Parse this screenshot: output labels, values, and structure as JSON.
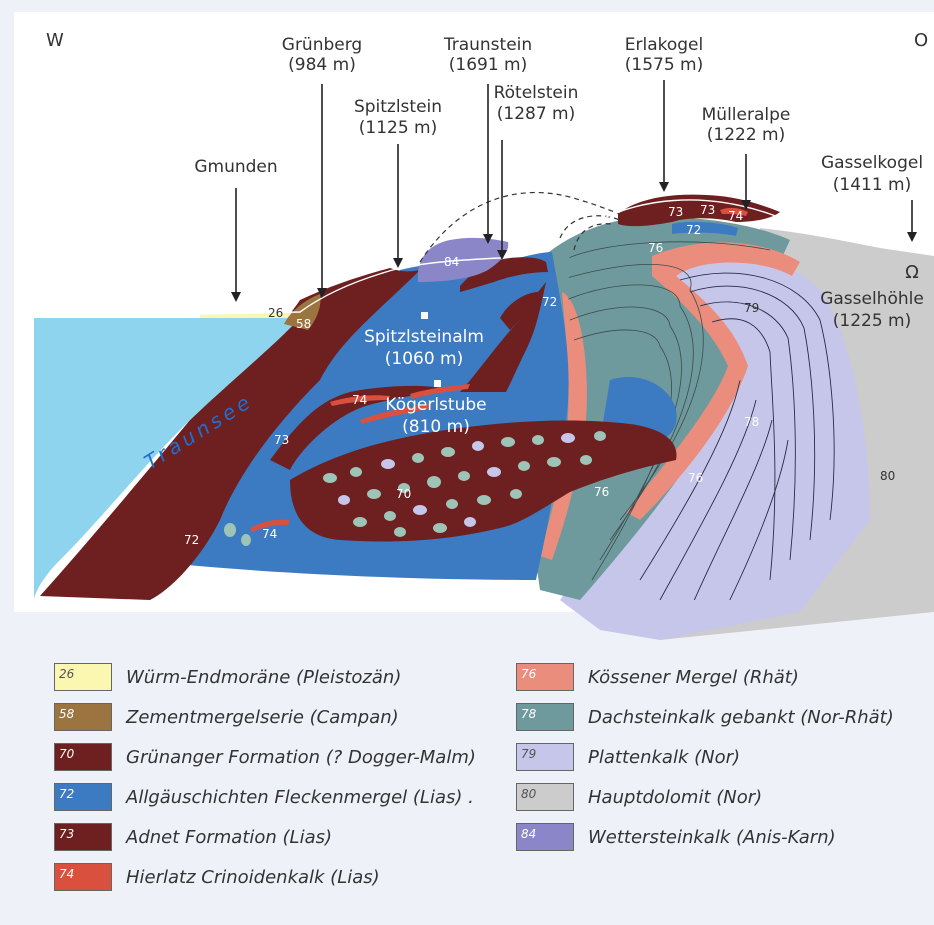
{
  "orientation": {
    "west": "W",
    "east": "O"
  },
  "peaks": [
    {
      "name": "Gmunden",
      "elev": ""
    },
    {
      "name": "Grünberg",
      "elev": "(984 m)"
    },
    {
      "name": "Spitzlstein",
      "elev": "(1125 m)"
    },
    {
      "name": "Traunstein",
      "elev": "(1691 m)"
    },
    {
      "name": "Rötelstein",
      "elev": "(1287 m)"
    },
    {
      "name": "Erlakogel",
      "elev": "(1575 m)"
    },
    {
      "name": "Mülleralpe",
      "elev": "(1222 m)"
    },
    {
      "name": "Gasselkogel",
      "elev": "(1411 m)"
    }
  ],
  "features": {
    "lake": "Traunsee",
    "alm1_name": "Spitzlsteinalm",
    "alm1_elev": "(1060 m)",
    "alm2_name": "Kögerlstube",
    "alm2_elev": "(810 m)",
    "cave_symbol": "Ω",
    "cave_name": "Gasselhöhle",
    "cave_elev": "(1225 m)"
  },
  "unit_labels": {
    "u26": "26",
    "u58": "58",
    "u84": "84",
    "u72a": "72",
    "u72b": "72",
    "u72c": "72",
    "u74a": "74",
    "u74b": "74",
    "u74c": "74",
    "u73a": "73",
    "u73b": "73",
    "u73c": "73",
    "u70": "70",
    "u76a": "76",
    "u76b": "76",
    "u76c": "76",
    "u78": "78",
    "u79": "79",
    "u80": "80"
  },
  "legend": [
    {
      "code": "26",
      "label": "Würm-Endmoräne (Pleistozän)",
      "color": "#fbf6b0",
      "text_color": "#555555"
    },
    {
      "code": "58",
      "label": "Zementmergelserie (Campan)",
      "color": "#9b7440",
      "text_color": "#ffffff"
    },
    {
      "code": "70",
      "label": "Grünanger Formation (? Dogger-Malm)",
      "color": "#6e1f1f",
      "text_color": "#ffffff"
    },
    {
      "code": "72",
      "label": "Allgäuschichten Fleckenmergel (Lias) .",
      "color": "#3c7ac2",
      "text_color": "#ffffff"
    },
    {
      "code": "73",
      "label": "Adnet Formation (Lias)",
      "color": "#6e1f1f",
      "text_color": "#ffffff"
    },
    {
      "code": "74",
      "label": "Hierlatz Crinoidenkalk (Lias)",
      "color": "#d9503f",
      "text_color": "#ffffff"
    },
    {
      "code": "76",
      "label": "Kössener Mergel (Rhät)",
      "color": "#eb8d7c",
      "text_color": "#ffffff"
    },
    {
      "code": "78",
      "label": "Dachsteinkalk gebankt (Nor-Rhät)",
      "color": "#6e9a9e",
      "text_color": "#ffffff"
    },
    {
      "code": "79",
      "label": "Plattenkalk (Nor)",
      "color": "#c6c6ea",
      "text_color": "#555555"
    },
    {
      "code": "80",
      "label": "Hauptdolomit (Nor)",
      "color": "#cccccc",
      "text_color": "#555555"
    },
    {
      "code": "84",
      "label": "Wettersteinkalk (Anis-Karn)",
      "color": "#8b86c8",
      "text_color": "#ffffff"
    }
  ]
}
